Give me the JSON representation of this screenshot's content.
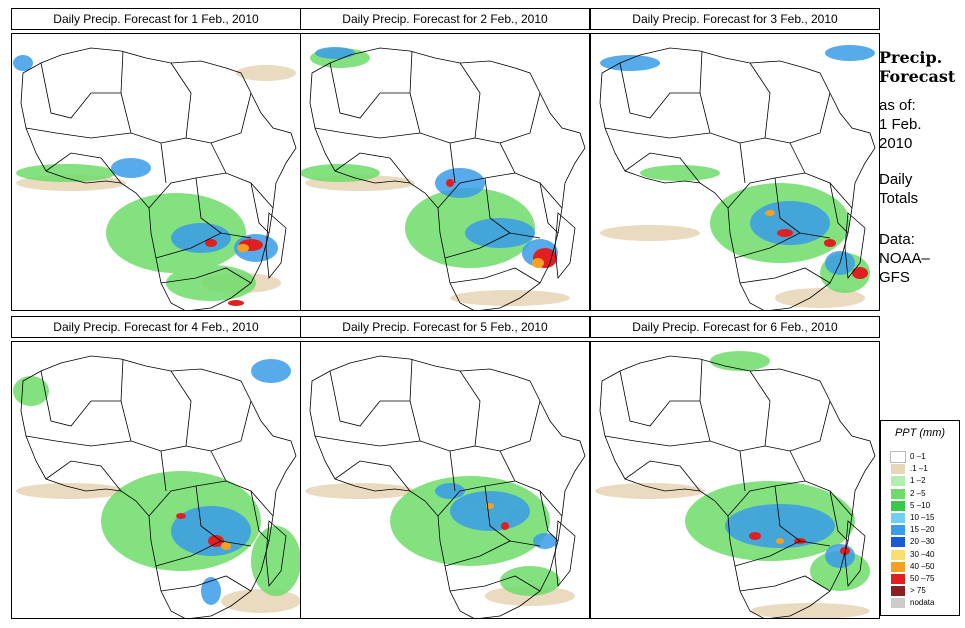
{
  "panels": [
    {
      "title": "Daily Precip. Forecast for  1 Feb., 2010"
    },
    {
      "title": "Daily Precip. Forecast for  2 Feb., 2010"
    },
    {
      "title": "Daily Precip. Forecast for  3 Feb., 2010"
    },
    {
      "title": "Daily Precip. Forecast for  4 Feb., 2010"
    },
    {
      "title": "Daily Precip. Forecast for  5 Feb., 2010"
    },
    {
      "title": "Daily Precip. Forecast for  6 Feb., 2010"
    }
  ],
  "sidebar": {
    "heading1": "Precip.",
    "heading2": "Forecast",
    "asof": "as of:",
    "date1": "1 Feb.",
    "date2": "2010",
    "daily1": "Daily",
    "daily2": "Totals",
    "data1": "Data:",
    "data2": "NOAA–",
    "data3": "GFS"
  },
  "legend": {
    "title": "PPT (mm)",
    "items": [
      {
        "label": "0 –1",
        "color": "#ffffff"
      },
      {
        "label": ".1 –1",
        "color": "#e8d6b8"
      },
      {
        "label": "1 –2",
        "color": "#b2eeb0"
      },
      {
        "label": "2 –5",
        "color": "#6fdc6a"
      },
      {
        "label": "5 –10",
        "color": "#38c84a"
      },
      {
        "label": "10 –15",
        "color": "#6ecff0"
      },
      {
        "label": "15 –20",
        "color": "#3a9ce8"
      },
      {
        "label": "20 –30",
        "color": "#1a5ad8"
      },
      {
        "label": "30 –40",
        "color": "#f7e070"
      },
      {
        "label": "40 –50",
        "color": "#f5a020"
      },
      {
        "label": "50 –75",
        "color": "#e02020"
      },
      {
        "label": "> 75",
        "color": "#8a2020"
      },
      {
        "label": "nodata",
        "color": "#cccccc"
      }
    ]
  }
}
